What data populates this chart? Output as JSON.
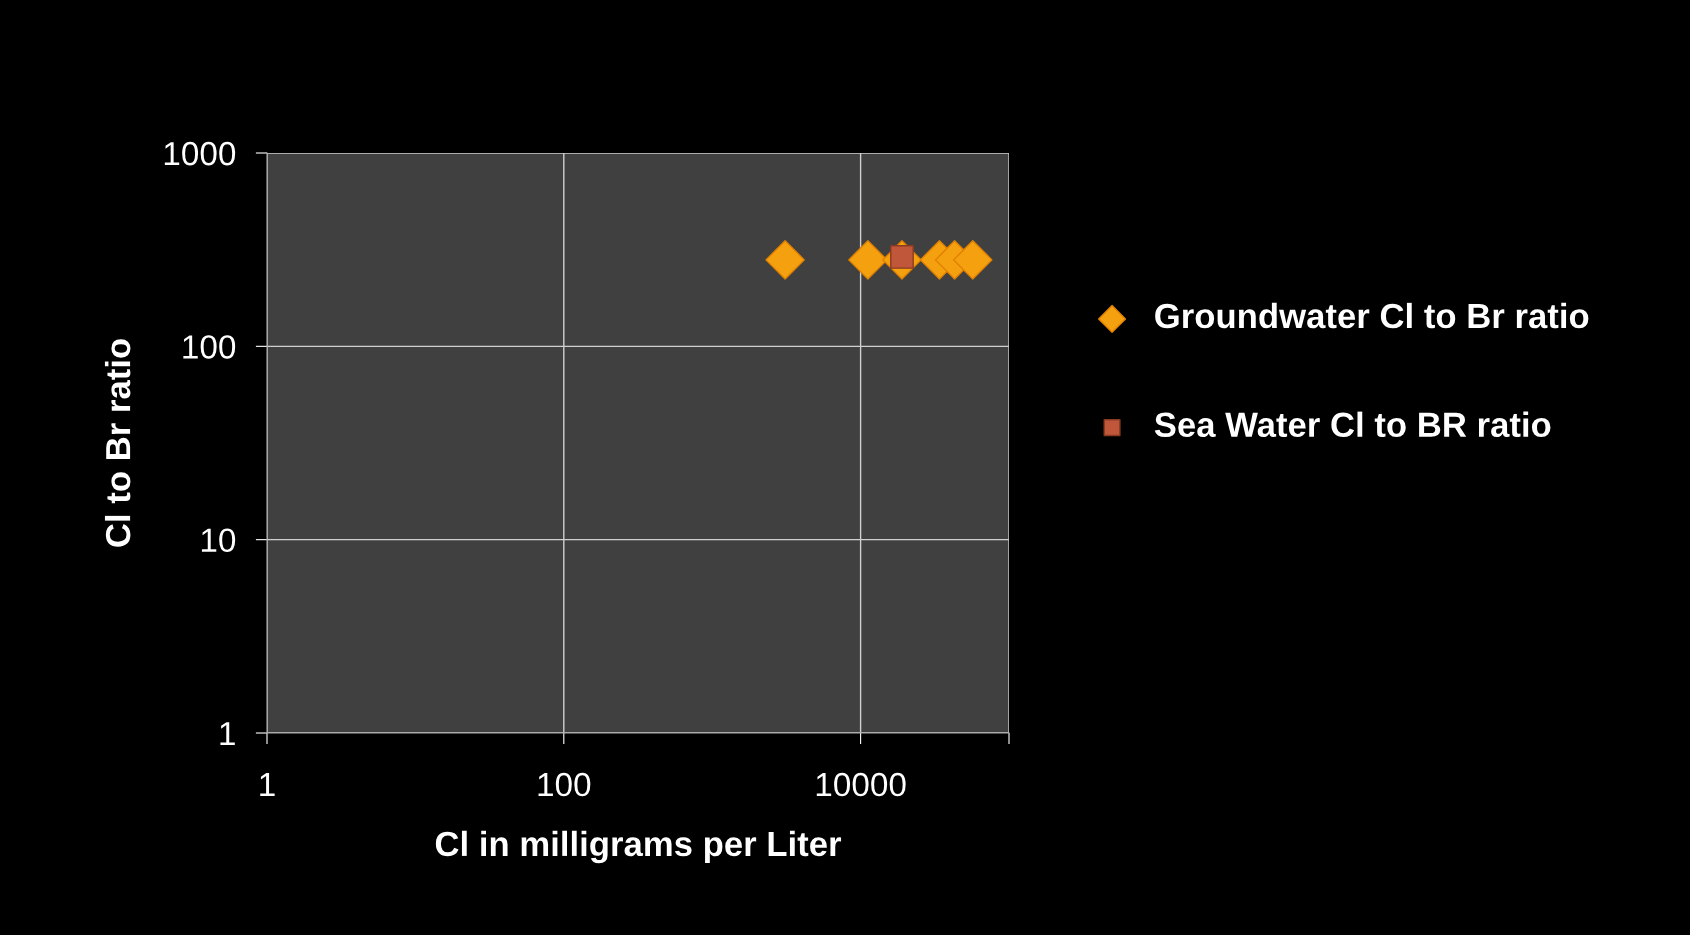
{
  "chart_data": {
    "type": "scatter",
    "xlabel": "Cl in milligrams per Liter",
    "ylabel": "Cl to Br ratio",
    "log": "xy",
    "xlim": [
      1,
      100000
    ],
    "ylim": [
      1,
      1000
    ],
    "xticks": [
      1,
      100,
      10000,
      {
        "value": 100000,
        "label": null
      }
    ],
    "yticks": [
      1,
      10,
      100,
      1000
    ],
    "grid": true,
    "legend": "right",
    "series": [
      {
        "name": "Groundwater Cl to Br ratio",
        "color": "#f5a00f",
        "marker": "diamond",
        "x": [
          3100,
          11200,
          19000,
          34000,
          43000,
          57000
        ],
        "values": [
          280,
          280,
          280,
          280,
          280,
          280
        ]
      },
      {
        "name": "Sea Water Cl to BR ratio",
        "color": "#c0573a",
        "marker": "square",
        "x": [
          19000
        ],
        "values": [
          290
        ]
      }
    ]
  }
}
